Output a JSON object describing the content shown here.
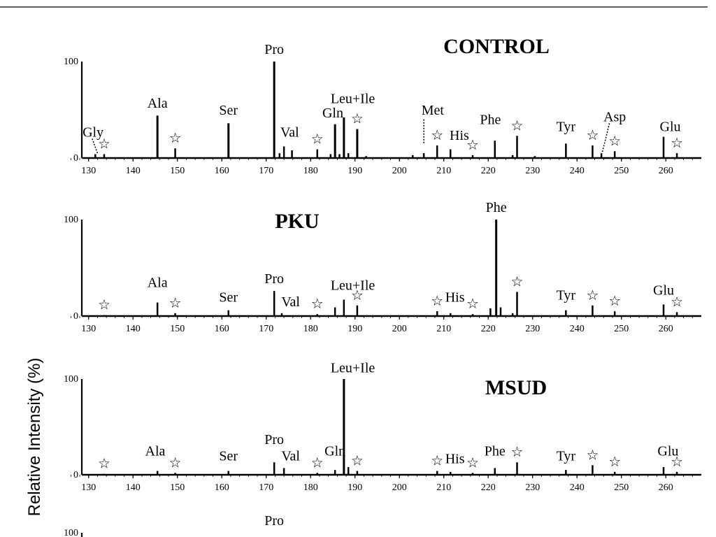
{
  "figure": {
    "y_axis_label": "Relative Intensity (%)",
    "star_glyph": "☆"
  },
  "chart_data": [
    {
      "type": "bar",
      "title": "CONTROL",
      "xlim": [
        125,
        268
      ],
      "ylim": [
        0,
        100
      ],
      "y_ticks": [
        "0",
        "100"
      ],
      "x_ticks": [
        130,
        140,
        150,
        160,
        170,
        180,
        190,
        200,
        210,
        220,
        230,
        240,
        250,
        260
      ],
      "peaks": [
        {
          "x": 131.5,
          "y": 4
        },
        {
          "x": 133.5,
          "y": 4
        },
        {
          "x": 145.5,
          "y": 44
        },
        {
          "x": 149.5,
          "y": 10
        },
        {
          "x": 161.5,
          "y": 36
        },
        {
          "x": 171.8,
          "y": 100
        },
        {
          "x": 173,
          "y": 5
        },
        {
          "x": 174,
          "y": 12
        },
        {
          "x": 175.8,
          "y": 8
        },
        {
          "x": 181.5,
          "y": 9
        },
        {
          "x": 184.5,
          "y": 4
        },
        {
          "x": 185.5,
          "y": 35
        },
        {
          "x": 186.5,
          "y": 4
        },
        {
          "x": 187.5,
          "y": 42
        },
        {
          "x": 188.5,
          "y": 5
        },
        {
          "x": 190.5,
          "y": 30
        },
        {
          "x": 192.5,
          "y": 2
        },
        {
          "x": 203,
          "y": 3
        },
        {
          "x": 205.5,
          "y": 5
        },
        {
          "x": 208.5,
          "y": 13
        },
        {
          "x": 211.5,
          "y": 9
        },
        {
          "x": 216.5,
          "y": 3
        },
        {
          "x": 221.5,
          "y": 18
        },
        {
          "x": 225.5,
          "y": 3
        },
        {
          "x": 226.5,
          "y": 23
        },
        {
          "x": 230.5,
          "y": 2
        },
        {
          "x": 237.5,
          "y": 15
        },
        {
          "x": 243.5,
          "y": 13
        },
        {
          "x": 245.5,
          "y": 5
        },
        {
          "x": 248.5,
          "y": 7
        },
        {
          "x": 259.5,
          "y": 22
        },
        {
          "x": 262.5,
          "y": 5
        }
      ],
      "annotations": [
        {
          "text": "Gly",
          "x": 131,
          "y": 22
        },
        {
          "text": "Ala",
          "x": 145.5,
          "y": 52
        },
        {
          "text": "Ser",
          "x": 161.5,
          "y": 45
        },
        {
          "text": "Pro",
          "x": 171.8,
          "y": 108
        },
        {
          "text": "Val",
          "x": 175.3,
          "y": 22
        },
        {
          "text": "Gln",
          "x": 185,
          "y": 42
        },
        {
          "text": "Leu+Ile",
          "x": 189.5,
          "y": 57
        },
        {
          "text": "Met",
          "x": 207.5,
          "y": 45
        },
        {
          "text": "His",
          "x": 213.5,
          "y": 19
        },
        {
          "text": "Phe",
          "x": 220.5,
          "y": 35
        },
        {
          "text": "Tyr",
          "x": 237.5,
          "y": 28
        },
        {
          "text": "Asp",
          "x": 248.5,
          "y": 38
        },
        {
          "text": "Glu",
          "x": 261,
          "y": 28
        }
      ],
      "stars_x": [
        133.5,
        149.5,
        181.5,
        190.5,
        208.5,
        216.5,
        226.5,
        243.5,
        248.5,
        262.5
      ],
      "dotted_leaders": [
        {
          "from": [
            130.8,
            20
          ],
          "to": [
            132,
            5
          ]
        },
        {
          "from": [
            205.5,
            40
          ],
          "to": [
            205.5,
            15
          ]
        },
        {
          "from": [
            247.3,
            36
          ],
          "to": [
            245.7,
            6
          ]
        }
      ]
    },
    {
      "type": "bar",
      "title": "PKU",
      "xlim": [
        125,
        268
      ],
      "ylim": [
        0,
        100
      ],
      "y_ticks": [
        "0",
        "100"
      ],
      "x_ticks": [
        130,
        140,
        150,
        160,
        170,
        180,
        190,
        200,
        210,
        220,
        230,
        240,
        250,
        260
      ],
      "peaks": [
        {
          "x": 133.5,
          "y": 1
        },
        {
          "x": 145.5,
          "y": 14
        },
        {
          "x": 149.5,
          "y": 3
        },
        {
          "x": 161.5,
          "y": 6
        },
        {
          "x": 171.8,
          "y": 26
        },
        {
          "x": 173.5,
          "y": 3
        },
        {
          "x": 181.5,
          "y": 2
        },
        {
          "x": 185.5,
          "y": 9
        },
        {
          "x": 187.5,
          "y": 17
        },
        {
          "x": 190.5,
          "y": 11
        },
        {
          "x": 208.5,
          "y": 5
        },
        {
          "x": 211.5,
          "y": 3
        },
        {
          "x": 216.5,
          "y": 2
        },
        {
          "x": 220.5,
          "y": 8
        },
        {
          "x": 221.8,
          "y": 100
        },
        {
          "x": 222.8,
          "y": 9
        },
        {
          "x": 225.5,
          "y": 3
        },
        {
          "x": 226.5,
          "y": 25
        },
        {
          "x": 237.5,
          "y": 6
        },
        {
          "x": 243.5,
          "y": 11
        },
        {
          "x": 248.5,
          "y": 5
        },
        {
          "x": 259.5,
          "y": 12
        },
        {
          "x": 262.5,
          "y": 4
        }
      ],
      "annotations": [
        {
          "text": "Ala",
          "x": 145.5,
          "y": 30
        },
        {
          "text": "Ser",
          "x": 161.5,
          "y": 15
        },
        {
          "text": "Pro",
          "x": 171.8,
          "y": 34
        },
        {
          "text": "Val",
          "x": 175.5,
          "y": 10
        },
        {
          "text": "Leu+Ile",
          "x": 189.5,
          "y": 27
        },
        {
          "text": "His",
          "x": 212.5,
          "y": 15
        },
        {
          "text": "Phe",
          "x": 221.8,
          "y": 108
        },
        {
          "text": "Tyr",
          "x": 237.5,
          "y": 17
        },
        {
          "text": "Glu",
          "x": 259.5,
          "y": 22
        }
      ],
      "stars_x": [
        133.5,
        149.5,
        181.5,
        190.5,
        208.5,
        216.5,
        226.5,
        243.5,
        248.5,
        262.5
      ],
      "dotted_leaders": []
    },
    {
      "type": "bar",
      "title": "MSUD",
      "xlim": [
        125,
        268
      ],
      "ylim": [
        0,
        100
      ],
      "y_ticks": [
        "0",
        "100"
      ],
      "x_ticks": [
        130,
        140,
        150,
        160,
        170,
        180,
        190,
        200,
        210,
        220,
        230,
        240,
        250,
        260
      ],
      "peaks": [
        {
          "x": 133.5,
          "y": 1
        },
        {
          "x": 145.5,
          "y": 4
        },
        {
          "x": 149.5,
          "y": 2
        },
        {
          "x": 161.5,
          "y": 4
        },
        {
          "x": 171.8,
          "y": 13
        },
        {
          "x": 174,
          "y": 7
        },
        {
          "x": 181.5,
          "y": 2
        },
        {
          "x": 185.5,
          "y": 5
        },
        {
          "x": 187.5,
          "y": 100
        },
        {
          "x": 188.5,
          "y": 8
        },
        {
          "x": 190.5,
          "y": 4
        },
        {
          "x": 208.5,
          "y": 4
        },
        {
          "x": 211.5,
          "y": 3
        },
        {
          "x": 216.5,
          "y": 2
        },
        {
          "x": 221.5,
          "y": 7
        },
        {
          "x": 226.5,
          "y": 13
        },
        {
          "x": 237.5,
          "y": 5
        },
        {
          "x": 243.5,
          "y": 10
        },
        {
          "x": 248.5,
          "y": 3
        },
        {
          "x": 259.5,
          "y": 8
        },
        {
          "x": 262.5,
          "y": 3
        }
      ],
      "annotations": [
        {
          "text": "Ala",
          "x": 145,
          "y": 20
        },
        {
          "text": "Ser",
          "x": 161.5,
          "y": 15
        },
        {
          "text": "Pro",
          "x": 171.8,
          "y": 32
        },
        {
          "text": "Val",
          "x": 175.5,
          "y": 15
        },
        {
          "text": "Gln",
          "x": 185.5,
          "y": 20
        },
        {
          "text": "Leu+Ile",
          "x": 189.5,
          "y": 107
        },
        {
          "text": "His",
          "x": 212.5,
          "y": 12
        },
        {
          "text": "Phe",
          "x": 221.5,
          "y": 20
        },
        {
          "text": "Tyr",
          "x": 237.5,
          "y": 15
        },
        {
          "text": "Glu",
          "x": 260.5,
          "y": 20
        }
      ],
      "stars_x": [
        133.5,
        149.5,
        181.5,
        190.5,
        208.5,
        216.5,
        226.5,
        243.5,
        248.5,
        262.5
      ],
      "dotted_leaders": []
    },
    {
      "type": "bar",
      "title": "",
      "partial": true,
      "y_ticks": [
        "100"
      ],
      "annotations": [
        {
          "text": "Pro",
          "x": 171.8,
          "y": 108
        }
      ]
    }
  ]
}
